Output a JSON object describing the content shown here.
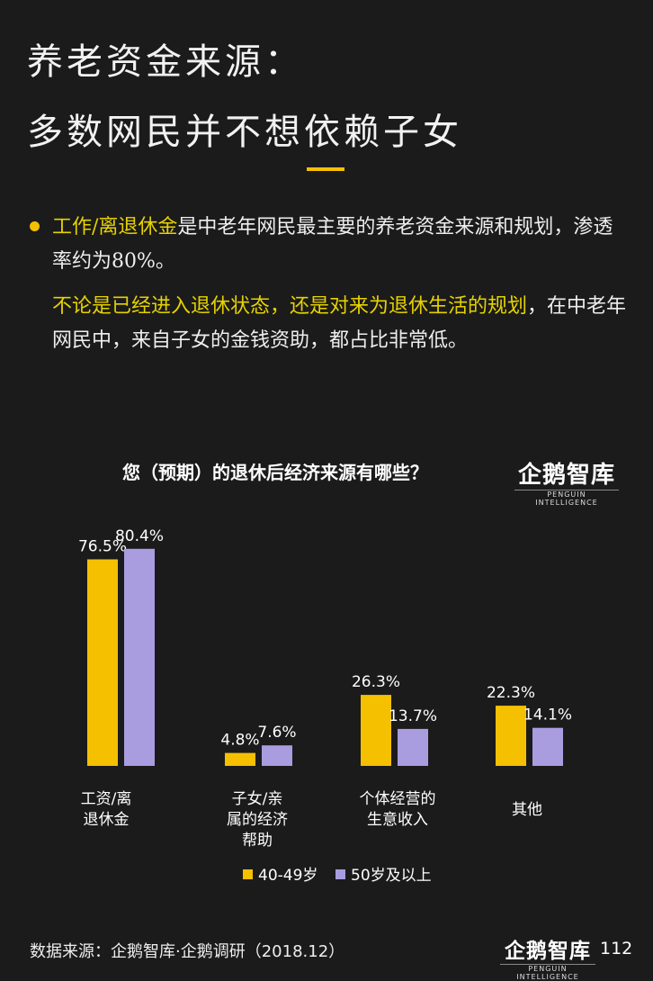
{
  "header": {
    "title_line1": "养老资金来源：",
    "title_line2": "多数网民并不想依赖子女"
  },
  "body": {
    "p1_highlight": "工作/离退休金",
    "p1_text": "是中老年网民最主要的养老资金来源和规划，渗透率约为80%。",
    "p2_highlight": "不论是已经进入退休状态，还是对来为退休生活的规划",
    "p2_text": "，在中老年网民中，来自子女的金钱资助，都占比非常低。"
  },
  "chart_title": "您（预期）的退休后经济来源有哪些？",
  "logo": {
    "main": "企鹅智库",
    "sub": "PENGUIN INTELLIGENCE"
  },
  "chart_data": {
    "type": "bar",
    "title": "您（预期）的退休后经济来源有哪些？",
    "categories": [
      [
        "工资/离",
        "退休金"
      ],
      [
        "子女/亲",
        "属的经济",
        "帮助"
      ],
      [
        "个体经营的",
        "生意收入"
      ],
      [
        "其他"
      ]
    ],
    "series": [
      {
        "name": "40-49岁",
        "color": "#f5c000",
        "values": [
          76.5,
          4.8,
          26.3,
          22.3
        ],
        "labels": [
          "76.5%",
          "4.8%",
          "26.3%",
          "22.3%"
        ]
      },
      {
        "name": "50岁及以上",
        "color": "#a99de0",
        "values": [
          80.4,
          7.6,
          13.7,
          14.1
        ],
        "labels": [
          "80.4%",
          "7.6%",
          "13.7%",
          "14.1%"
        ]
      }
    ],
    "ylim": [
      0,
      100
    ],
    "grid": false,
    "legend": "bottom"
  },
  "footer": {
    "source": "数据来源：企鹅智库·企鹅调研（2018.12）",
    "page": "112"
  }
}
